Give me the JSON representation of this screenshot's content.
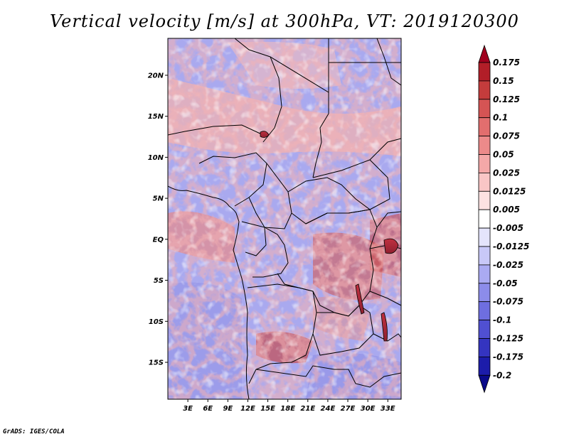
{
  "title": "Vertical velocity [m/s] at 300hPa, VT: 2019120300",
  "credit": "GrADS: IGES/COLA",
  "lat_labels": [
    "20N",
    "15N",
    "10N",
    "5N",
    "EQ",
    "5S",
    "10S",
    "15S"
  ],
  "lat_values": [
    20,
    15,
    10,
    5,
    0,
    -5,
    -10,
    -15
  ],
  "lon_labels": [
    "3E",
    "6E",
    "9E",
    "12E",
    "15E",
    "18E",
    "21E",
    "24E",
    "27E",
    "30E",
    "33E"
  ],
  "lon_values": [
    3,
    6,
    9,
    12,
    15,
    18,
    21,
    24,
    27,
    30,
    33
  ],
  "map_extent": {
    "lon_min": 0,
    "lon_max": 35,
    "lat_min": -19.5,
    "lat_max": 24.5
  },
  "colorbar": {
    "labels": [
      "0.175",
      "0.15",
      "0.125",
      "0.1",
      "0.075",
      "0.05",
      "0.025",
      "0.0125",
      "0.005",
      "-0.005",
      "-0.0125",
      "-0.025",
      "-0.05",
      "-0.075",
      "-0.1",
      "-0.125",
      "-0.175",
      "-0.2"
    ],
    "colors": [
      "#a0001e",
      "#b21e28",
      "#c43c3c",
      "#d55454",
      "#e26e6e",
      "#ec8a8a",
      "#f4a8a8",
      "#f9c6c6",
      "#fde2e2",
      "#ffffff",
      "#e4e4fc",
      "#c8c8f8",
      "#aaaaf2",
      "#8c8cea",
      "#6e6ee0",
      "#5050d2",
      "#3434c0",
      "#1c1caa",
      "#0a0a8a"
    ]
  },
  "colors": {
    "ocean_blue": "#b9b9f2",
    "land_blue": "#9c9cec",
    "warm_red": "#f0a0a0",
    "strong_red": "#b01e28",
    "border": "#000000"
  }
}
